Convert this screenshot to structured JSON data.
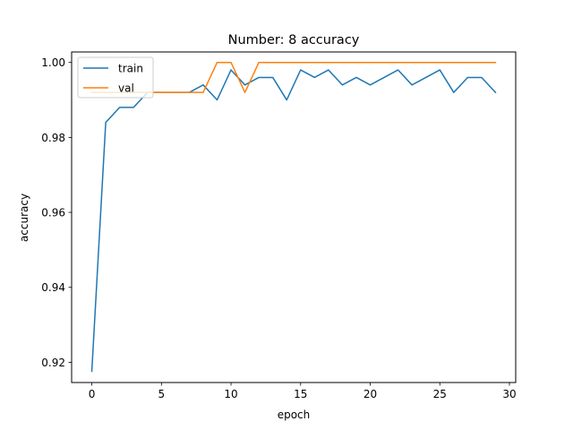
{
  "chart_data": {
    "type": "line",
    "title": "Number: 8 accuracy",
    "xlabel": "epoch",
    "ylabel": "accuracy",
    "xlim": [
      -1.45,
      30.45
    ],
    "ylim": [
      0.9146,
      1.0028
    ],
    "xticks": [
      0,
      5,
      10,
      15,
      20,
      25,
      30
    ],
    "yticks": [
      0.92,
      0.94,
      0.96,
      0.98,
      1.0
    ],
    "ytick_labels": [
      "0.92",
      "0.94",
      "0.96",
      "0.98",
      "1.00"
    ],
    "grid": false,
    "legend_position": "top-left",
    "x": [
      0,
      1,
      2,
      3,
      4,
      5,
      6,
      7,
      8,
      9,
      10,
      11,
      12,
      13,
      14,
      15,
      16,
      17,
      18,
      19,
      20,
      21,
      22,
      23,
      24,
      25,
      26,
      27,
      28,
      29
    ],
    "series": [
      {
        "name": "train",
        "color": "#1f77b4",
        "values": [
          0.9176,
          0.984,
          0.988,
          0.988,
          0.992,
          0.992,
          0.992,
          0.992,
          0.994,
          0.99,
          0.998,
          0.994,
          0.996,
          0.996,
          0.99,
          0.998,
          0.996,
          0.998,
          0.994,
          0.996,
          0.994,
          0.996,
          0.998,
          0.994,
          0.996,
          0.998,
          0.992,
          0.996,
          0.996,
          0.992
        ]
      },
      {
        "name": "val",
        "color": "#ff7f0e",
        "values": [
          0.992,
          0.992,
          0.992,
          0.992,
          0.992,
          0.992,
          0.992,
          0.992,
          0.992,
          1.0,
          1.0,
          0.992,
          1.0,
          1.0,
          1.0,
          1.0,
          1.0,
          1.0,
          1.0,
          1.0,
          1.0,
          1.0,
          1.0,
          1.0,
          1.0,
          1.0,
          1.0,
          1.0,
          1.0,
          1.0
        ]
      }
    ]
  }
}
